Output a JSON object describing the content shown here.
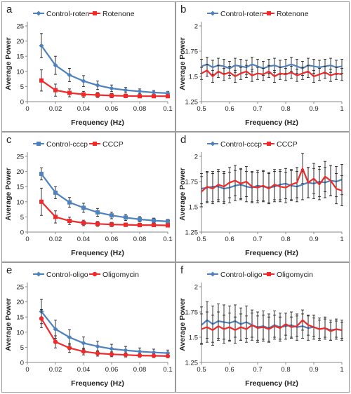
{
  "chart_data": [
    {
      "panel": "a",
      "type": "line",
      "xlabel": "Frequency (Hz)",
      "ylabel": "Average Power",
      "xlim": [
        0,
        0.1
      ],
      "ylim": [
        0,
        25
      ],
      "xticks": [
        0,
        0.02,
        0.04,
        0.06,
        0.08,
        0.1
      ],
      "xtick_labels": [
        "0",
        "0.02",
        "0.04",
        "0.06",
        "0.08",
        "0.1"
      ],
      "yticks": [
        0,
        5,
        10,
        15,
        20,
        25
      ],
      "ytick_labels": [
        "0",
        "5",
        "10",
        "15",
        "20",
        "25"
      ],
      "legend_position": "top",
      "series": [
        {
          "name": "Control-roten",
          "color": "#4f81bd",
          "marker": "diamond",
          "x": [
            0.01,
            0.02,
            0.03,
            0.04,
            0.05,
            0.06,
            0.07,
            0.08,
            0.09,
            0.1
          ],
          "y": [
            18.5,
            12,
            8.8,
            6.8,
            5.4,
            4.4,
            3.8,
            3.4,
            3.0,
            2.8
          ],
          "err": [
            4,
            3,
            2.2,
            1.8,
            1.4,
            1.1,
            0.9,
            0.8,
            0.7,
            0.6
          ]
        },
        {
          "name": "Rotenone",
          "color": "#ee2a2a",
          "marker": "square",
          "x": [
            0.01,
            0.02,
            0.03,
            0.04,
            0.05,
            0.06,
            0.07,
            0.08,
            0.09,
            0.1
          ],
          "y": [
            7,
            3.8,
            2.9,
            2.4,
            2.2,
            2.0,
            1.9,
            1.8,
            1.8,
            1.8
          ],
          "err": [
            3.5,
            2,
            1.3,
            1,
            0.8,
            0.7,
            0.6,
            0.5,
            0.5,
            0.5
          ]
        }
      ]
    },
    {
      "panel": "b",
      "type": "line",
      "xlabel": "Frequency (Hz)",
      "ylabel": "Average Power",
      "xlim": [
        0.5,
        1
      ],
      "ylim": [
        1.25,
        2
      ],
      "xticks": [
        0.5,
        0.6,
        0.7,
        0.8,
        0.9,
        1
      ],
      "xtick_labels": [
        "0.5",
        "0.6",
        "0.7",
        "0.8",
        "0.9",
        "1"
      ],
      "yticks": [
        1.25,
        1.5,
        1.75,
        2
      ],
      "ytick_labels": [
        "1.25",
        "1.5",
        "1.75",
        "2"
      ],
      "legend_position": "top",
      "series": [
        {
          "name": "Control-roten",
          "color": "#4f81bd",
          "marker": "none",
          "x": [
            0.5,
            0.52,
            0.54,
            0.56,
            0.58,
            0.6,
            0.62,
            0.64,
            0.66,
            0.68,
            0.7,
            0.72,
            0.74,
            0.76,
            0.78,
            0.8,
            0.82,
            0.84,
            0.86,
            0.88,
            0.9,
            0.92,
            0.94,
            0.96,
            0.98,
            1.0
          ],
          "y": [
            1.6,
            1.62,
            1.59,
            1.61,
            1.6,
            1.58,
            1.61,
            1.6,
            1.59,
            1.62,
            1.6,
            1.58,
            1.6,
            1.61,
            1.59,
            1.6,
            1.62,
            1.6,
            1.58,
            1.61,
            1.6,
            1.59,
            1.6,
            1.61,
            1.59,
            1.6
          ],
          "err": [
            0.07,
            0.07,
            0.07,
            0.07,
            0.07,
            0.07,
            0.07,
            0.07,
            0.07,
            0.07,
            0.07,
            0.07,
            0.07,
            0.07,
            0.07,
            0.07,
            0.07,
            0.07,
            0.07,
            0.07,
            0.07,
            0.07,
            0.07,
            0.07,
            0.07,
            0.07
          ]
        },
        {
          "name": "Rotenone",
          "color": "#ee2a2a",
          "marker": "none",
          "x": [
            0.5,
            0.52,
            0.54,
            0.56,
            0.58,
            0.6,
            0.62,
            0.64,
            0.66,
            0.68,
            0.7,
            0.72,
            0.74,
            0.76,
            0.78,
            0.8,
            0.82,
            0.84,
            0.86,
            0.88,
            0.9,
            0.92,
            0.94,
            0.96,
            0.98,
            1.0
          ],
          "y": [
            1.53,
            1.56,
            1.5,
            1.55,
            1.52,
            1.54,
            1.5,
            1.53,
            1.55,
            1.51,
            1.53,
            1.52,
            1.55,
            1.5,
            1.53,
            1.52,
            1.54,
            1.51,
            1.53,
            1.55,
            1.5,
            1.52,
            1.54,
            1.51,
            1.53,
            1.52
          ],
          "err": [
            0.06,
            0.06,
            0.06,
            0.06,
            0.06,
            0.06,
            0.06,
            0.06,
            0.06,
            0.06,
            0.06,
            0.06,
            0.06,
            0.06,
            0.06,
            0.06,
            0.06,
            0.06,
            0.06,
            0.06,
            0.06,
            0.06,
            0.06,
            0.06,
            0.06,
            0.06
          ]
        }
      ]
    },
    {
      "panel": "c",
      "type": "line",
      "xlabel": "Frequency (Hz)",
      "ylabel": "Average Power",
      "xlim": [
        0,
        0.1
      ],
      "ylim": [
        0,
        25
      ],
      "xticks": [
        0,
        0.02,
        0.04,
        0.06,
        0.08,
        0.1
      ],
      "xtick_labels": [
        "0",
        "0.02",
        "0.04",
        "0.06",
        "0.08",
        "0.1"
      ],
      "yticks": [
        0,
        5,
        10,
        15,
        20,
        25
      ],
      "ytick_labels": [
        "0",
        "5",
        "10",
        "15",
        "20",
        "25"
      ],
      "legend_position": "top",
      "series": [
        {
          "name": "Control-cccp",
          "color": "#4f81bd",
          "marker": "square",
          "x": [
            0.01,
            0.02,
            0.03,
            0.04,
            0.05,
            0.06,
            0.07,
            0.08,
            0.09,
            0.1
          ],
          "y": [
            19.2,
            13,
            9.8,
            8,
            6.5,
            5.5,
            4.8,
            4.2,
            3.8,
            3.5
          ],
          "err": [
            2,
            2,
            1.6,
            1.5,
            1.3,
            1.1,
            1.0,
            0.9,
            0.8,
            0.7
          ]
        },
        {
          "name": "CCCP",
          "color": "#ee2a2a",
          "marker": "square",
          "x": [
            0.01,
            0.02,
            0.03,
            0.04,
            0.05,
            0.06,
            0.07,
            0.08,
            0.09,
            0.1
          ],
          "y": [
            10,
            5,
            3.7,
            3.0,
            2.7,
            2.5,
            2.4,
            2.3,
            2.3,
            2.2
          ],
          "err": [
            4.5,
            2,
            1.2,
            0.9,
            0.8,
            0.7,
            0.6,
            0.6,
            0.5,
            0.5
          ]
        }
      ]
    },
    {
      "panel": "d",
      "type": "line",
      "xlabel": "Frequency (Hz)",
      "ylabel": "Average Power",
      "xlim": [
        0.5,
        1
      ],
      "ylim": [
        1.25,
        2
      ],
      "xticks": [
        0.5,
        0.6,
        0.7,
        0.8,
        0.9,
        1
      ],
      "xtick_labels": [
        "0.5",
        "0.6",
        "0.7",
        "0.8",
        "0.9",
        "1"
      ],
      "yticks": [
        1.25,
        1.5,
        1.75,
        2
      ],
      "ytick_labels": [
        "1.25",
        "1.5",
        "1.75",
        "2"
      ],
      "legend_position": "top",
      "series": [
        {
          "name": "Control-cccp",
          "color": "#4f81bd",
          "marker": "none",
          "x": [
            0.5,
            0.52,
            0.54,
            0.56,
            0.58,
            0.6,
            0.62,
            0.64,
            0.66,
            0.68,
            0.7,
            0.72,
            0.74,
            0.76,
            0.78,
            0.8,
            0.82,
            0.84,
            0.86,
            0.88,
            0.9,
            0.92,
            0.94,
            0.96,
            0.98,
            1.0
          ],
          "y": [
            1.68,
            1.69,
            1.7,
            1.7,
            1.68,
            1.69,
            1.71,
            1.72,
            1.7,
            1.69,
            1.71,
            1.7,
            1.69,
            1.7,
            1.72,
            1.73,
            1.71,
            1.7,
            1.72,
            1.74,
            1.73,
            1.75,
            1.74,
            1.76,
            1.75,
            1.77
          ],
          "err": [
            0.15,
            0.15,
            0.15,
            0.15,
            0.15,
            0.15,
            0.15,
            0.15,
            0.15,
            0.15,
            0.15,
            0.15,
            0.15,
            0.15,
            0.15,
            0.15,
            0.15,
            0.15,
            0.15,
            0.15,
            0.15,
            0.15,
            0.15,
            0.15,
            0.15,
            0.15
          ]
        },
        {
          "name": "CCCP",
          "color": "#ee2a2a",
          "marker": "none",
          "x": [
            0.5,
            0.52,
            0.54,
            0.56,
            0.58,
            0.6,
            0.62,
            0.64,
            0.66,
            0.68,
            0.7,
            0.72,
            0.74,
            0.76,
            0.78,
            0.8,
            0.82,
            0.84,
            0.86,
            0.88,
            0.9,
            0.92,
            0.94,
            0.96,
            0.98,
            1.0
          ],
          "y": [
            1.65,
            1.7,
            1.68,
            1.72,
            1.7,
            1.74,
            1.76,
            1.73,
            1.75,
            1.7,
            1.69,
            1.71,
            1.68,
            1.72,
            1.7,
            1.69,
            1.72,
            1.74,
            1.88,
            1.74,
            1.78,
            1.72,
            1.8,
            1.76,
            1.68,
            1.66
          ],
          "err": [
            0.15,
            0.15,
            0.15,
            0.15,
            0.15,
            0.15,
            0.15,
            0.15,
            0.15,
            0.15,
            0.15,
            0.15,
            0.15,
            0.15,
            0.15,
            0.15,
            0.15,
            0.15,
            0.15,
            0.15,
            0.15,
            0.15,
            0.15,
            0.15,
            0.15,
            0.15
          ]
        }
      ]
    },
    {
      "panel": "e",
      "type": "line",
      "xlabel": "Frequency (Hz)",
      "ylabel": "Average Power",
      "xlim": [
        0,
        0.1
      ],
      "ylim": [
        0,
        25
      ],
      "xticks": [
        0,
        0.02,
        0.04,
        0.06,
        0.08,
        0.1
      ],
      "xtick_labels": [
        "0",
        "0.02",
        "0.04",
        "0.06",
        "0.08",
        "0.1"
      ],
      "yticks": [
        0,
        5,
        10,
        15,
        20,
        25
      ],
      "ytick_labels": [
        "0",
        "5",
        "10",
        "15",
        "20",
        "25"
      ],
      "legend_position": "top",
      "series": [
        {
          "name": "Control-oligo",
          "color": "#4f81bd",
          "marker": "diamond",
          "x": [
            0.01,
            0.02,
            0.03,
            0.04,
            0.05,
            0.06,
            0.07,
            0.08,
            0.09,
            0.1
          ],
          "y": [
            16.8,
            11,
            8.3,
            6.4,
            5.3,
            4.5,
            4.0,
            3.6,
            3.3,
            3.1
          ],
          "err": [
            4,
            3,
            2.5,
            2,
            1.7,
            1.5,
            1.3,
            1.2,
            1.1,
            1.0
          ]
        },
        {
          "name": "Oligomycin",
          "color": "#ee2a2a",
          "marker": "circle",
          "x": [
            0.01,
            0.02,
            0.03,
            0.04,
            0.05,
            0.06,
            0.07,
            0.08,
            0.09,
            0.1
          ],
          "y": [
            14.5,
            6.8,
            4.8,
            3.6,
            3.0,
            2.7,
            2.5,
            2.3,
            2.2,
            2.1
          ],
          "err": [
            3,
            2,
            1.5,
            1.1,
            0.9,
            0.8,
            0.7,
            0.6,
            0.6,
            0.5
          ]
        }
      ]
    },
    {
      "panel": "f",
      "type": "line",
      "xlabel": "Frequency (Hz)",
      "ylabel": "Average Power",
      "xlim": [
        0.5,
        1
      ],
      "ylim": [
        1.25,
        2
      ],
      "xticks": [
        0.5,
        0.6,
        0.7,
        0.8,
        0.9,
        1
      ],
      "xtick_labels": [
        "0.5",
        "0.6",
        "0.7",
        "0.8",
        "0.9",
        "1"
      ],
      "yticks": [
        1.25,
        1.5,
        1.75,
        2
      ],
      "ytick_labels": [
        "1.25",
        "1.5",
        "1.75",
        "2"
      ],
      "legend_position": "top",
      "series": [
        {
          "name": "Control-oligo",
          "color": "#4f81bd",
          "marker": "none",
          "x": [
            0.5,
            0.52,
            0.54,
            0.56,
            0.58,
            0.6,
            0.62,
            0.64,
            0.66,
            0.68,
            0.7,
            0.72,
            0.74,
            0.76,
            0.78,
            0.8,
            0.82,
            0.84,
            0.86,
            0.88,
            0.9,
            0.92,
            0.94,
            0.96,
            0.98,
            1.0
          ],
          "y": [
            1.62,
            1.67,
            1.63,
            1.66,
            1.65,
            1.64,
            1.66,
            1.63,
            1.65,
            1.62,
            1.6,
            1.61,
            1.59,
            1.62,
            1.6,
            1.61,
            1.62,
            1.6,
            1.61,
            1.59,
            1.6,
            1.58,
            1.59,
            1.57,
            1.58,
            1.57
          ],
          "err": [
            0.18,
            0.18,
            0.18,
            0.17,
            0.17,
            0.17,
            0.16,
            0.16,
            0.16,
            0.15,
            0.15,
            0.15,
            0.14,
            0.14,
            0.14,
            0.13,
            0.13,
            0.13,
            0.12,
            0.12,
            0.12,
            0.11,
            0.11,
            0.1,
            0.1,
            0.1
          ]
        },
        {
          "name": "Oligomycin",
          "color": "#ee2a2a",
          "marker": "none",
          "x": [
            0.5,
            0.52,
            0.54,
            0.56,
            0.58,
            0.6,
            0.62,
            0.64,
            0.66,
            0.68,
            0.7,
            0.72,
            0.74,
            0.76,
            0.78,
            0.8,
            0.82,
            0.84,
            0.86,
            0.88,
            0.9,
            0.92,
            0.94,
            0.96,
            0.98,
            1.0
          ],
          "y": [
            1.58,
            1.6,
            1.57,
            1.61,
            1.58,
            1.6,
            1.57,
            1.6,
            1.58,
            1.62,
            1.59,
            1.6,
            1.58,
            1.61,
            1.59,
            1.63,
            1.6,
            1.61,
            1.67,
            1.62,
            1.6,
            1.58,
            1.59,
            1.56,
            1.58,
            1.57
          ],
          "err": [
            0.15,
            0.15,
            0.15,
            0.14,
            0.14,
            0.14,
            0.13,
            0.13,
            0.13,
            0.12,
            0.12,
            0.12,
            0.12,
            0.11,
            0.11,
            0.11,
            0.1,
            0.1,
            0.1,
            0.1,
            0.09,
            0.09,
            0.09,
            0.09,
            0.08,
            0.08
          ]
        }
      ]
    }
  ]
}
